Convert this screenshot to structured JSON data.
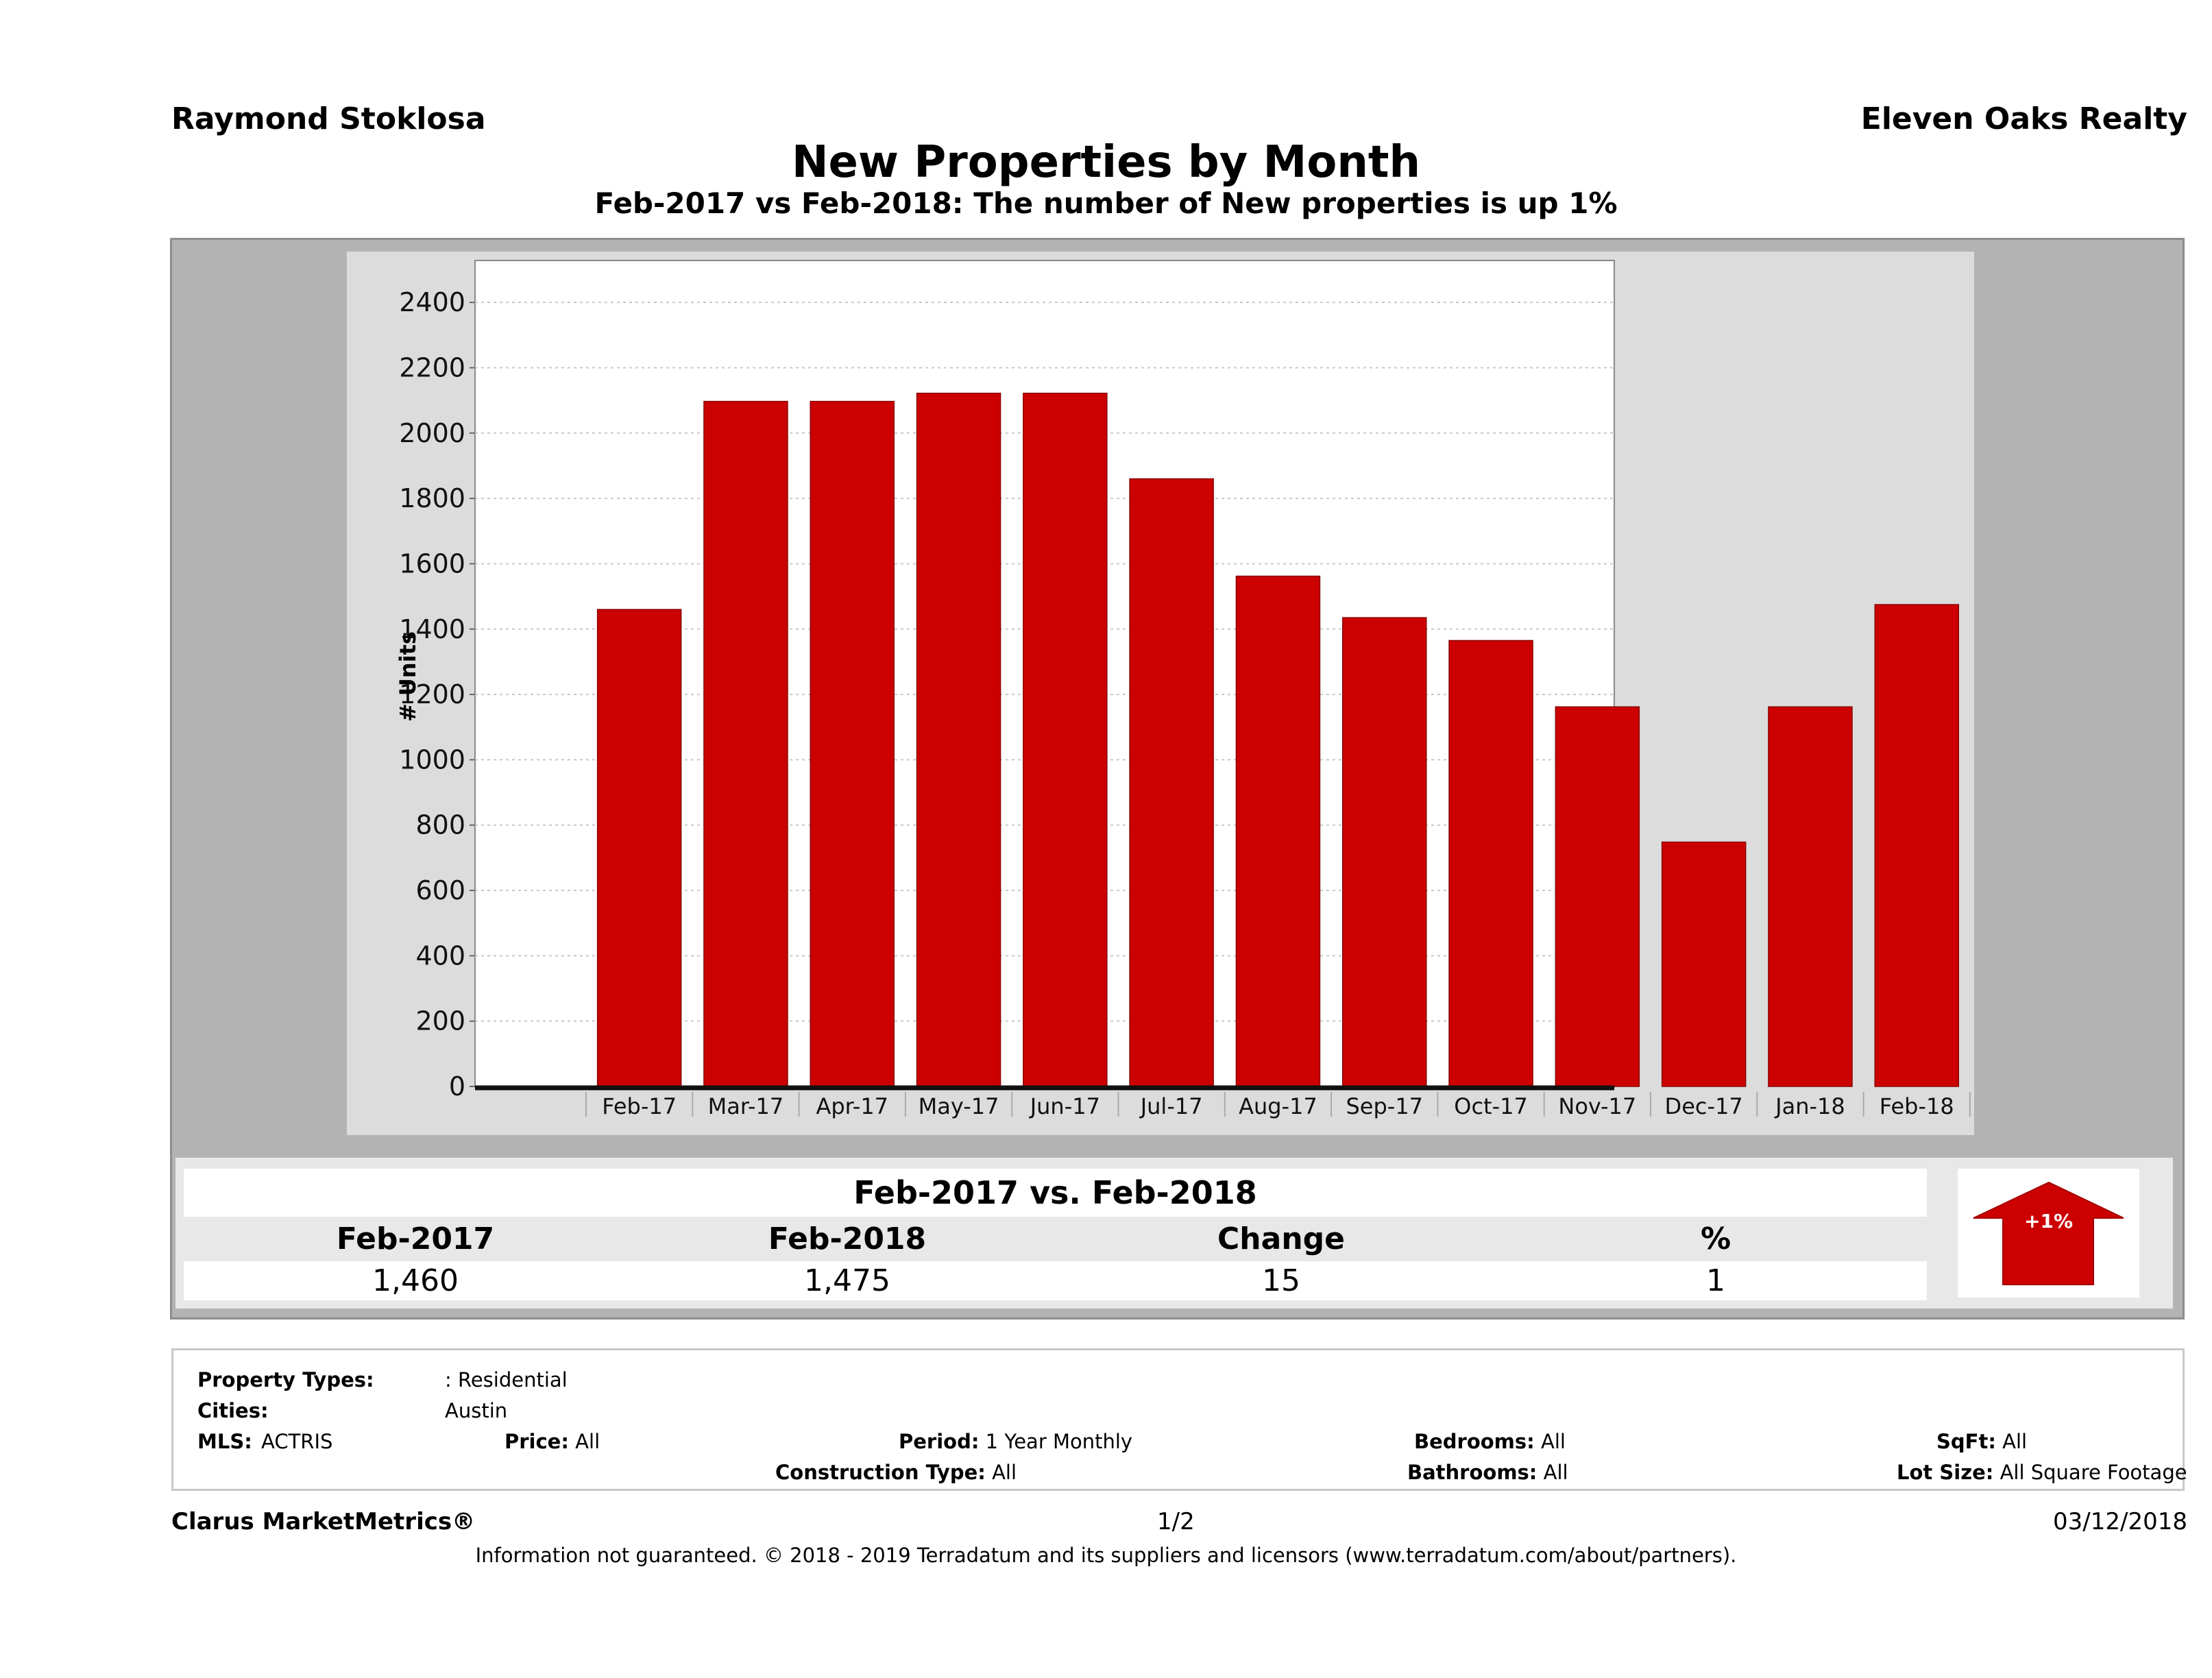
{
  "header": {
    "agent_name": "Raymond Stoklosa",
    "company_name": "Eleven Oaks Realty",
    "title": "New Properties by Month",
    "subtitle": "Feb-2017 vs Feb-2018: The number of New  properties is up 1%"
  },
  "chart_data": {
    "type": "bar",
    "title": "New Properties by Month",
    "xlabel": "",
    "ylabel": "# Units",
    "categories": [
      "Feb-17",
      "Mar-17",
      "Apr-17",
      "May-17",
      "Jun-17",
      "Jul-17",
      "Aug-17",
      "Sep-17",
      "Oct-17",
      "Nov-17",
      "Dec-17",
      "Jan-18",
      "Feb-18"
    ],
    "values": [
      1460,
      2097,
      2097,
      2122,
      2122,
      1860,
      1562,
      1435,
      1365,
      1162,
      748,
      1162,
      1475
    ],
    "ylim": [
      0,
      2500
    ],
    "yticks": [
      0,
      200,
      400,
      600,
      800,
      1000,
      1200,
      1400,
      1600,
      1800,
      2000,
      2200,
      2400
    ],
    "grid": true,
    "legend": "none",
    "bar_color": "#cc0000"
  },
  "comparison": {
    "title": "Feb-2017 vs. Feb-2018",
    "headers": [
      "Feb-2017",
      "Feb-2018",
      "Change",
      "%"
    ],
    "values": [
      "1,460",
      "1,475",
      "15",
      "1"
    ],
    "badge": {
      "icon": "arrow-up-icon",
      "label": "+1%",
      "color": "#cc0000"
    }
  },
  "filters": {
    "property_types_label": "Property Types:",
    "property_types_value": ": Residential",
    "cities_label": "Cities:",
    "cities_value": "Austin",
    "mls_label": "MLS:",
    "mls_value": "ACTRIS",
    "price_label": "Price:",
    "price_value": "All",
    "period_label": "Period:",
    "period_value": "1 Year Monthly",
    "construction_label": "Construction Type:",
    "construction_value": "All",
    "bedrooms_label": "Bedrooms:",
    "bedrooms_value": "All",
    "bathrooms_label": "Bathrooms:",
    "bathrooms_value": "All",
    "sqft_label": "SqFt:",
    "sqft_value": "All",
    "lotsize_label": "Lot Size:",
    "lotsize_value": "All Square Footage"
  },
  "footer": {
    "brand": "Clarus MarketMetrics®",
    "page": "1/2",
    "date": "03/12/2018",
    "disclaimer": "Information not guaranteed. © 2018 - 2019 Terradatum and its suppliers and licensors (www.terradatum.com/about/partners)."
  }
}
